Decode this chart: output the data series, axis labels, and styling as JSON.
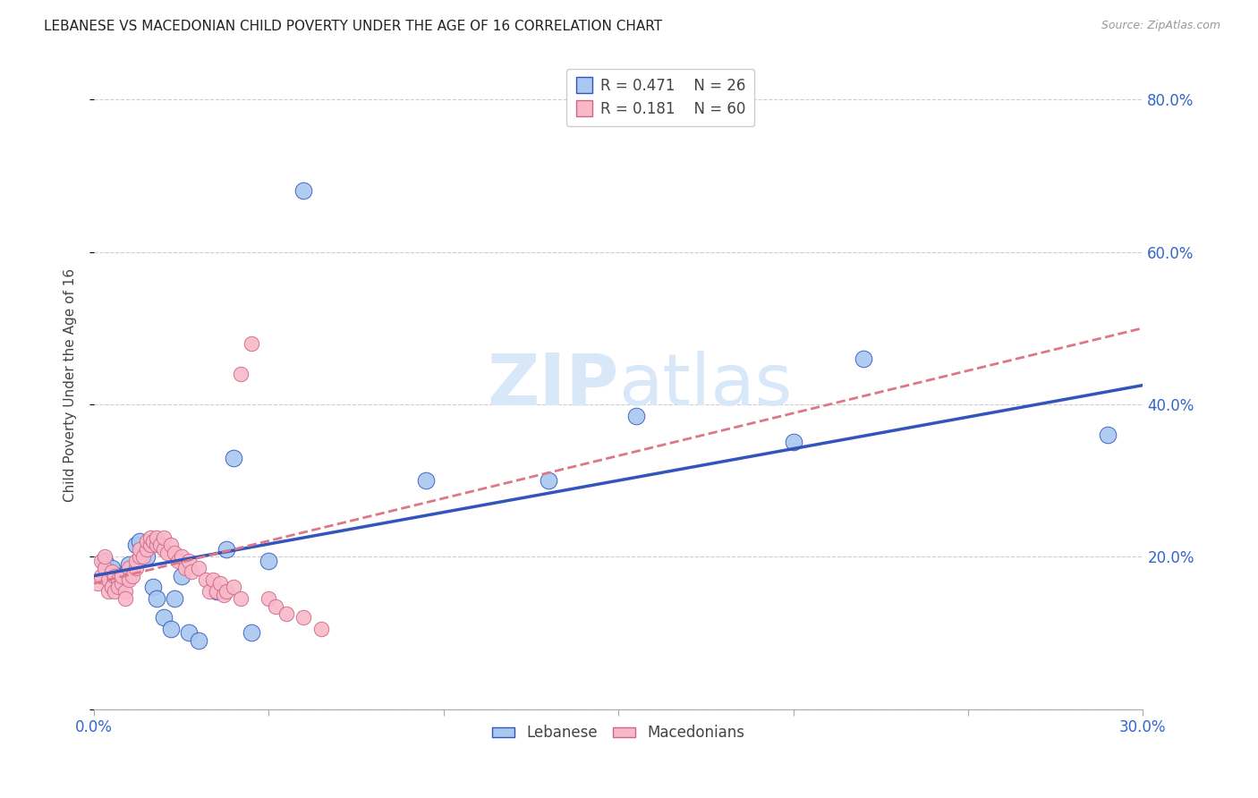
{
  "title": "LEBANESE VS MACEDONIAN CHILD POVERTY UNDER THE AGE OF 16 CORRELATION CHART",
  "source": "Source: ZipAtlas.com",
  "ylabel": "Child Poverty Under the Age of 16",
  "xlim": [
    0.0,
    0.3
  ],
  "ylim": [
    0.0,
    0.85
  ],
  "yticks": [
    0.0,
    0.2,
    0.4,
    0.6,
    0.8
  ],
  "xticks": [
    0.0,
    0.05,
    0.1,
    0.15,
    0.2,
    0.25,
    0.3
  ],
  "xtick_labels": [
    "0.0%",
    "",
    "",
    "",
    "",
    "",
    "30.0%"
  ],
  "ytick_labels": [
    "",
    "20.0%",
    "40.0%",
    "60.0%",
    "80.0%"
  ],
  "lebanese_color": "#A8C8F0",
  "macedonian_color": "#F8B8C8",
  "trend_lebanese_color": "#3355BB",
  "trend_macedonian_color": "#DD7788",
  "watermark_color": "#D8E8F8",
  "lebanese_points": [
    [
      0.003,
      0.195
    ],
    [
      0.005,
      0.185
    ],
    [
      0.007,
      0.175
    ],
    [
      0.008,
      0.17
    ],
    [
      0.01,
      0.19
    ],
    [
      0.012,
      0.215
    ],
    [
      0.013,
      0.22
    ],
    [
      0.015,
      0.2
    ],
    [
      0.017,
      0.16
    ],
    [
      0.018,
      0.145
    ],
    [
      0.02,
      0.12
    ],
    [
      0.022,
      0.105
    ],
    [
      0.023,
      0.145
    ],
    [
      0.025,
      0.175
    ],
    [
      0.027,
      0.1
    ],
    [
      0.03,
      0.09
    ],
    [
      0.035,
      0.155
    ],
    [
      0.038,
      0.21
    ],
    [
      0.04,
      0.33
    ],
    [
      0.045,
      0.1
    ],
    [
      0.05,
      0.195
    ],
    [
      0.06,
      0.68
    ],
    [
      0.095,
      0.3
    ],
    [
      0.13,
      0.3
    ],
    [
      0.155,
      0.385
    ],
    [
      0.2,
      0.35
    ],
    [
      0.22,
      0.46
    ],
    [
      0.29,
      0.36
    ]
  ],
  "macedonian_points": [
    [
      0.001,
      0.165
    ],
    [
      0.002,
      0.175
    ],
    [
      0.002,
      0.195
    ],
    [
      0.003,
      0.185
    ],
    [
      0.003,
      0.2
    ],
    [
      0.004,
      0.17
    ],
    [
      0.004,
      0.155
    ],
    [
      0.005,
      0.18
    ],
    [
      0.005,
      0.16
    ],
    [
      0.006,
      0.175
    ],
    [
      0.006,
      0.155
    ],
    [
      0.007,
      0.17
    ],
    [
      0.007,
      0.16
    ],
    [
      0.008,
      0.165
    ],
    [
      0.008,
      0.175
    ],
    [
      0.009,
      0.155
    ],
    [
      0.009,
      0.145
    ],
    [
      0.01,
      0.185
    ],
    [
      0.01,
      0.17
    ],
    [
      0.011,
      0.175
    ],
    [
      0.012,
      0.185
    ],
    [
      0.012,
      0.195
    ],
    [
      0.013,
      0.2
    ],
    [
      0.013,
      0.21
    ],
    [
      0.014,
      0.2
    ],
    [
      0.015,
      0.21
    ],
    [
      0.015,
      0.22
    ],
    [
      0.016,
      0.215
    ],
    [
      0.016,
      0.225
    ],
    [
      0.017,
      0.22
    ],
    [
      0.018,
      0.215
    ],
    [
      0.018,
      0.225
    ],
    [
      0.019,
      0.215
    ],
    [
      0.02,
      0.21
    ],
    [
      0.02,
      0.225
    ],
    [
      0.021,
      0.205
    ],
    [
      0.022,
      0.215
    ],
    [
      0.023,
      0.205
    ],
    [
      0.024,
      0.195
    ],
    [
      0.025,
      0.2
    ],
    [
      0.026,
      0.185
    ],
    [
      0.027,
      0.195
    ],
    [
      0.028,
      0.18
    ],
    [
      0.03,
      0.185
    ],
    [
      0.032,
      0.17
    ],
    [
      0.033,
      0.155
    ],
    [
      0.034,
      0.17
    ],
    [
      0.035,
      0.155
    ],
    [
      0.036,
      0.165
    ],
    [
      0.037,
      0.15
    ],
    [
      0.038,
      0.155
    ],
    [
      0.04,
      0.16
    ],
    [
      0.042,
      0.145
    ],
    [
      0.042,
      0.44
    ],
    [
      0.045,
      0.48
    ],
    [
      0.05,
      0.145
    ],
    [
      0.052,
      0.135
    ],
    [
      0.055,
      0.125
    ],
    [
      0.06,
      0.12
    ],
    [
      0.065,
      0.105
    ]
  ],
  "leb_trend": [
    0.0,
    0.3,
    0.175,
    0.425
  ],
  "mac_trend": [
    0.0,
    0.3,
    0.165,
    0.5
  ]
}
